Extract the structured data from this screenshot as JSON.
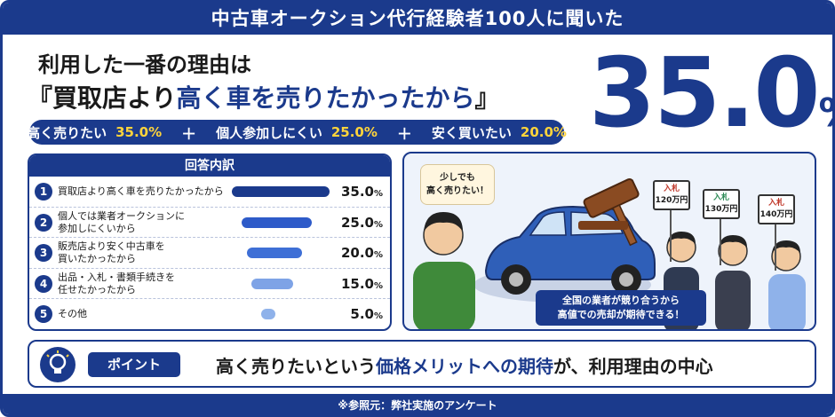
{
  "header": {
    "banner": "中古車オークション代行経験者100人に聞いた"
  },
  "headline": {
    "line1": "利用した一番の理由は",
    "open_quote": "『",
    "part_dark": "買取店より",
    "part_highlight": "高く車を売りたかったから",
    "close_quote": "』"
  },
  "big_stat": {
    "value": "35.0",
    "unit": "%"
  },
  "reasons": [
    {
      "label": "高く売りたい",
      "value": "35.0%"
    },
    {
      "label": "個人参加しにくい",
      "value": "25.0%"
    },
    {
      "label": "安く買いたい",
      "value": "20.0%"
    }
  ],
  "plus_symbol": "＋",
  "breakdown": {
    "title": "回答内訳"
  },
  "chart_data": {
    "type": "bar",
    "title": "回答内訳",
    "orientation": "horizontal",
    "unit": "%",
    "categories": [
      "買取店より高く車を売りたかったから",
      "個人では業者オークションに参加しにくいから",
      "販売店より安く中古車を買いたかったから",
      "出品・入札・書類手続きを任せたかったから",
      "その他"
    ],
    "category_lines": [
      [
        "買取店より高く車を売りたかったから"
      ],
      [
        "個人では業者オークションに",
        "参加しにくいから"
      ],
      [
        "販売店より安く中古車を",
        "買いたかったから"
      ],
      [
        "出品・入札・書類手続きを",
        "任せたかったから"
      ],
      [
        "その他"
      ]
    ],
    "values": [
      35.0,
      25.0,
      20.0,
      15.0,
      5.0
    ],
    "value_labels": [
      "35.0",
      "25.0",
      "20.0",
      "15.0",
      "5.0"
    ],
    "bar_colors": [
      "#1b3a8c",
      "#2e5bc9",
      "#3e6fd6",
      "#7ea3e6",
      "#8fb2ea"
    ],
    "xlim": [
      0,
      35
    ]
  },
  "illustration": {
    "speech": [
      "少しでも",
      "高く売りたい！"
    ],
    "bids": [
      {
        "title": "入札",
        "amount": "120万円"
      },
      {
        "title": "入札",
        "amount": "130万円"
      },
      {
        "title": "入札",
        "amount": "140万円"
      }
    ],
    "caption": [
      "全国の業者が競り合うから",
      "高値での売却が期待できる！"
    ]
  },
  "point": {
    "tag": "ポイント",
    "text_pre": "高く売りたいという",
    "text_highlight": "価格メリットへの期待",
    "text_post": "が、利用理由の中心"
  },
  "footer": {
    "source": "※参照元：弊社実施のアンケート"
  },
  "colors": {
    "brand": "#1b3a8c",
    "accent_yellow": "#ffd43b",
    "bar": "#2e5bc9"
  }
}
